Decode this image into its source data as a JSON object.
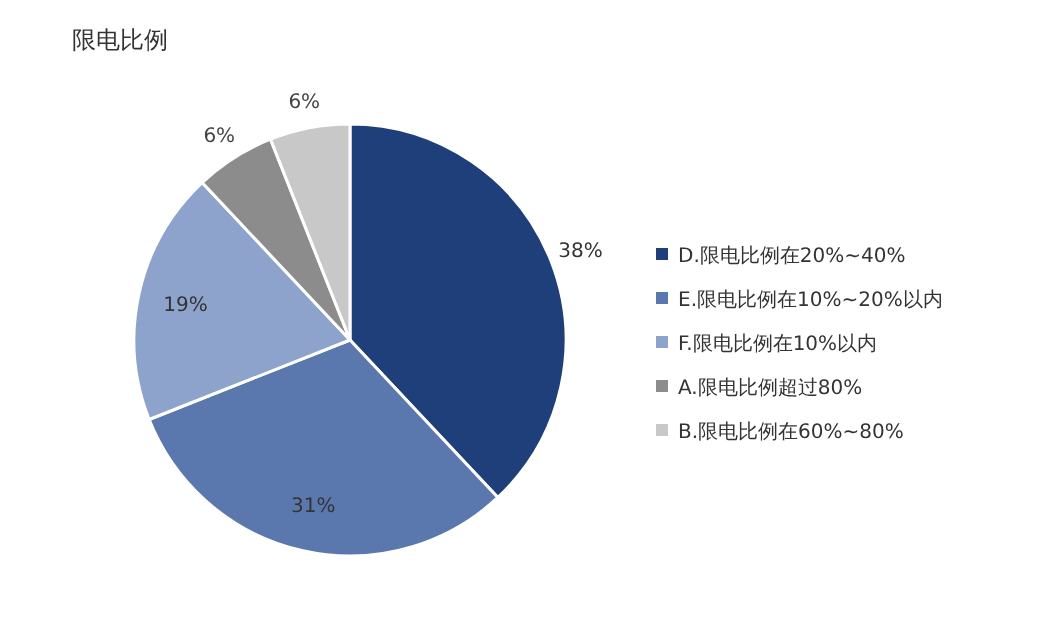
{
  "chart_data": {
    "type": "pie",
    "title": "限电比例",
    "categories": [
      "D.限电比例在20%~40%",
      "E.限电比例在10%~20%以内",
      "F.限电比例在10%以内",
      "A.限电比例超过80%",
      "B.限电比例在60%~80%"
    ],
    "values": [
      38,
      31,
      19,
      6,
      6
    ],
    "colors": [
      "#1f3f7a",
      "#5a78ae",
      "#8da3cc",
      "#8c8c8c",
      "#c8c8c8"
    ],
    "value_labels": [
      "38%",
      "31%",
      "19%",
      "6%",
      "6%"
    ],
    "legend": "right"
  }
}
